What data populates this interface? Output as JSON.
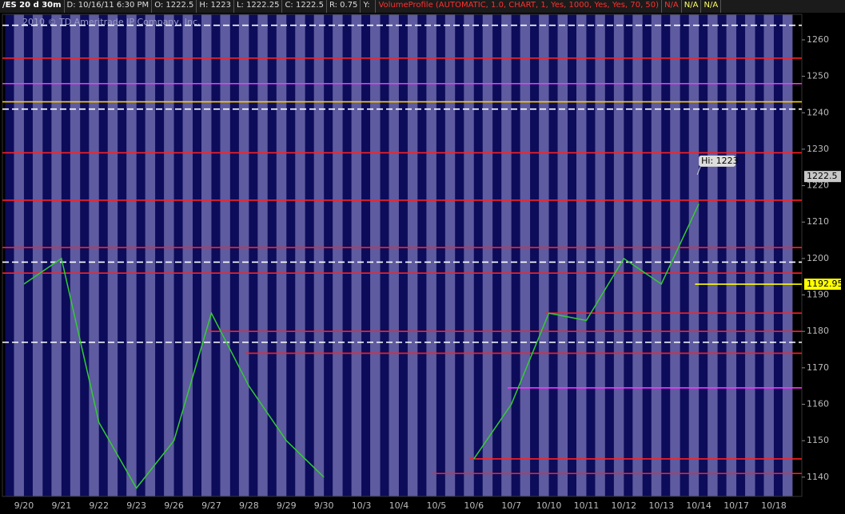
{
  "header": {
    "symbol": "/ES 20 d 30m",
    "date": "D: 10/16/11 6:30 PM",
    "open": "O: 1222.5",
    "high": "H: 1223",
    "low": "L: 1222.25",
    "close": "C: 1222.5",
    "range": "R: 0.75",
    "y": "Y:",
    "study": "VolumeProfile (AUTOMATIC, 1.0, CHART, 1, Yes, 1000, Yes, Yes, 70, 50)",
    "na": [
      "N/A",
      "N/A",
      "N/A"
    ]
  },
  "watermark": "2010 © TD Ameritrade IP Company, Inc.",
  "chart_data": {
    "type": "line",
    "categories": [
      "9/20",
      "9/21",
      "9/22",
      "9/23",
      "9/26",
      "9/27",
      "9/28",
      "9/29",
      "9/30",
      "10/3",
      "10/4",
      "10/5",
      "10/6",
      "10/7",
      "10/10",
      "10/11",
      "10/12",
      "10/13",
      "10/14",
      "10/17",
      "10/18"
    ],
    "values": [
      1193,
      1200,
      1155,
      1137,
      1150,
      1185,
      1165,
      1150,
      1140,
      null,
      null,
      null,
      1145,
      1160,
      1185,
      1183,
      1200,
      1193,
      1215,
      null,
      null
    ],
    "color": "#33cc33",
    "ylim": [
      1134.7,
      1267
    ],
    "yticks": [
      1140,
      1150,
      1160,
      1170,
      1180,
      1190,
      1200,
      1210,
      1220,
      1230,
      1240,
      1250,
      1260
    ],
    "levels": [
      {
        "value": 1264,
        "color": "#ffffff",
        "dashed": true
      },
      {
        "value": 1255,
        "color": "#ff2020",
        "dashed": false
      },
      {
        "value": 1248,
        "color": "#ff33ff",
        "dashed": false
      },
      {
        "value": 1243,
        "color": "#ffcc00",
        "dashed": false
      },
      {
        "value": 1241,
        "color": "#ffffff",
        "dashed": true
      },
      {
        "value": 1229,
        "color": "#ff2020",
        "dashed": false
      },
      {
        "value": 1216,
        "color": "#ff2020",
        "dashed": false
      },
      {
        "value": 1203,
        "color": "#ff2020",
        "dashed": false
      },
      {
        "value": 1199,
        "color": "#ffffff",
        "dashed": true
      },
      {
        "value": 1196,
        "color": "#ff2020",
        "dashed": false
      },
      {
        "value": 1185,
        "color": "#ff2020",
        "dashed": false,
        "from": "10/10"
      },
      {
        "value": 1180,
        "color": "#ff2020",
        "dashed": false,
        "from": "9/27"
      },
      {
        "value": 1177,
        "color": "#ffffff",
        "dashed": true
      },
      {
        "value": 1174,
        "color": "#ff2020",
        "dashed": false,
        "from": "9/28"
      },
      {
        "value": 1164.5,
        "color": "#ff33ff",
        "dashed": false,
        "from": "10/7"
      },
      {
        "value": 1145,
        "color": "#ff2020",
        "dashed": false,
        "from": "10/6"
      },
      {
        "value": 1141,
        "color": "#ff2020",
        "dashed": false,
        "from": "10/5"
      },
      {
        "value": 1192.95,
        "color": "#ffff00",
        "dashed": false,
        "from": "10/14"
      }
    ],
    "price_tags": [
      {
        "value": 1222.5,
        "color": "#c8c8c8"
      },
      {
        "value": 1192.95,
        "color": "#ffff00"
      }
    ],
    "annotation": {
      "label": "Hi: 1223",
      "value": 1223,
      "category": "10/14"
    }
  }
}
